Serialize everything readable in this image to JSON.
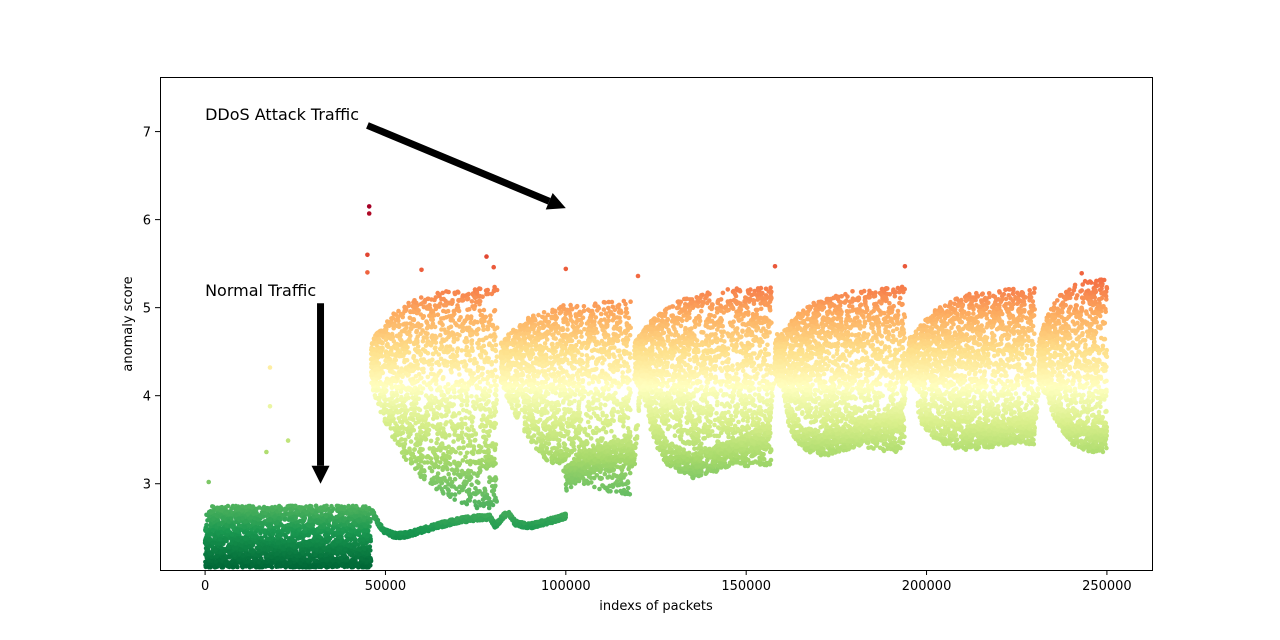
{
  "chart_data": {
    "type": "scatter",
    "title": "",
    "xlabel": "indexs of packets",
    "ylabel": "anomaly score",
    "xlim": [
      -12500,
      262500
    ],
    "ylim": [
      2.02,
      7.62
    ],
    "x_ticks": [
      {
        "value": 0,
        "label": "0"
      },
      {
        "value": 50000,
        "label": "50000"
      },
      {
        "value": 100000,
        "label": "100000"
      },
      {
        "value": 150000,
        "label": "150000"
      },
      {
        "value": 200000,
        "label": "200000"
      },
      {
        "value": 250000,
        "label": "250000"
      }
    ],
    "y_ticks": [
      {
        "value": 3,
        "label": "3"
      },
      {
        "value": 4,
        "label": "4"
      },
      {
        "value": 5,
        "label": "5"
      },
      {
        "value": 6,
        "label": "6"
      },
      {
        "value": 7,
        "label": "7"
      }
    ],
    "grid": false,
    "colormap": "RdYlGn_r",
    "color_range": [
      2.05,
      6.15
    ],
    "colors": {
      "low": "#006837",
      "mid": "#ffffbf",
      "high": "#a50026"
    },
    "series": [
      {
        "segment": "normal-traffic-band",
        "x_range": [
          0,
          46000
        ],
        "y_range": [
          2.05,
          2.75
        ],
        "approx_points": 2400
      },
      {
        "segment": "attack-cycles",
        "cycles": [
          {
            "start_x": 46000,
            "end_x": 81000,
            "y_min": 2.6,
            "y_max": 5.25
          },
          {
            "start_x": 82000,
            "end_x": 118000,
            "y_min": 2.8,
            "y_max": 5.1
          },
          {
            "start_x": 119000,
            "end_x": 157000,
            "y_min": 3.1,
            "y_max": 5.25
          },
          {
            "start_x": 158000,
            "end_x": 194000,
            "y_min": 3.3,
            "y_max": 5.25
          },
          {
            "start_x": 195000,
            "end_x": 230000,
            "y_min": 3.4,
            "y_max": 5.25
          },
          {
            "start_x": 231000,
            "end_x": 250000,
            "y_min": 3.4,
            "y_max": 5.35
          }
        ]
      },
      {
        "segment": "lower-curve",
        "points": [
          [
            46000,
            2.72
          ],
          [
            48000,
            2.55
          ],
          [
            50000,
            2.45
          ],
          [
            53000,
            2.41
          ],
          [
            56000,
            2.42
          ],
          [
            60000,
            2.47
          ],
          [
            65000,
            2.53
          ],
          [
            70000,
            2.58
          ],
          [
            75000,
            2.61
          ],
          [
            79000,
            2.62
          ],
          [
            80500,
            2.52
          ],
          [
            82000,
            2.6
          ],
          [
            84000,
            2.68
          ],
          [
            86000,
            2.55
          ],
          [
            90000,
            2.52
          ],
          [
            95000,
            2.57
          ],
          [
            100000,
            2.63
          ]
        ]
      },
      {
        "segment": "upper-band-after-100k",
        "points": [
          [
            100000,
            3.05
          ],
          [
            105000,
            3.22
          ],
          [
            110000,
            3.3
          ],
          [
            117000,
            3.4
          ],
          [
            119000,
            3.3
          ],
          [
            121000,
            4.25
          ],
          [
            124000,
            3.65
          ],
          [
            128000,
            3.35
          ],
          [
            135000,
            3.2
          ],
          [
            142000,
            3.28
          ],
          [
            150000,
            3.42
          ],
          [
            156000,
            3.55
          ],
          [
            158500,
            4.6
          ],
          [
            162000,
            3.75
          ],
          [
            166000,
            3.5
          ],
          [
            172000,
            3.45
          ],
          [
            180000,
            3.55
          ],
          [
            188000,
            3.65
          ],
          [
            193000,
            3.75
          ],
          [
            195500,
            4.6
          ],
          [
            198000,
            3.85
          ],
          [
            203000,
            3.6
          ],
          [
            210000,
            3.52
          ],
          [
            218000,
            3.55
          ],
          [
            225000,
            3.6
          ],
          [
            230000,
            3.7
          ],
          [
            232000,
            4.45
          ],
          [
            235000,
            3.9
          ],
          [
            240000,
            3.6
          ],
          [
            245000,
            3.5
          ],
          [
            250000,
            3.5
          ]
        ]
      },
      {
        "segment": "outliers",
        "points": [
          [
            45500,
            6.15
          ],
          [
            45500,
            6.07
          ],
          [
            45000,
            5.6
          ],
          [
            45000,
            5.4
          ],
          [
            78000,
            5.58
          ],
          [
            80000,
            5.46
          ],
          [
            60000,
            5.43
          ],
          [
            100000,
            5.44
          ],
          [
            120000,
            5.36
          ],
          [
            158000,
            5.47
          ],
          [
            194000,
            5.47
          ],
          [
            243000,
            5.39
          ],
          [
            18000,
            4.32
          ],
          [
            18000,
            3.88
          ],
          [
            17000,
            3.36
          ],
          [
            23000,
            3.49
          ],
          [
            1000,
            3.02
          ]
        ]
      }
    ],
    "annotations": [
      {
        "text": "DDoS Attack Traffic",
        "text_pos": [
          0,
          7.2
        ],
        "arrow_from": [
          45000,
          7.07
        ],
        "arrow_to": [
          100000,
          6.13
        ]
      },
      {
        "text": "Normal Traffic",
        "text_pos": [
          0,
          5.2
        ],
        "arrow_from": [
          32000,
          5.05
        ],
        "arrow_to": [
          32000,
          3.0
        ]
      }
    ]
  }
}
